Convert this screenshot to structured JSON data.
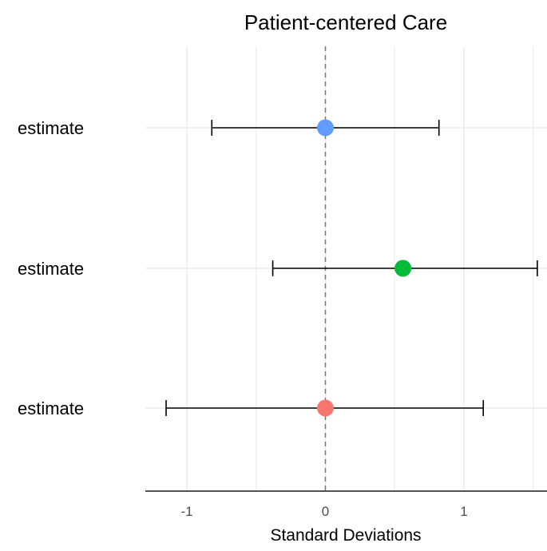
{
  "chart_data": {
    "type": "forest",
    "title": "Patient-centered Care",
    "xlabel": "Standard Deviations",
    "ylabel": "",
    "xlim": [
      -1.3,
      1.6
    ],
    "x_ticks": [
      -1,
      0,
      1
    ],
    "x_tick_labels": [
      "-1",
      "0",
      "1"
    ],
    "reference_line": 0,
    "grid": true,
    "series": [
      {
        "label": "estimate",
        "estimate": 0.0,
        "lower": -0.82,
        "upper": 0.82,
        "color": "#619cff"
      },
      {
        "label": "estimate",
        "estimate": 0.56,
        "lower": -0.38,
        "upper": 1.53,
        "color": "#00ba38"
      },
      {
        "label": "estimate",
        "estimate": 0.0,
        "lower": -1.15,
        "upper": 1.14,
        "color": "#f8766d"
      }
    ]
  }
}
